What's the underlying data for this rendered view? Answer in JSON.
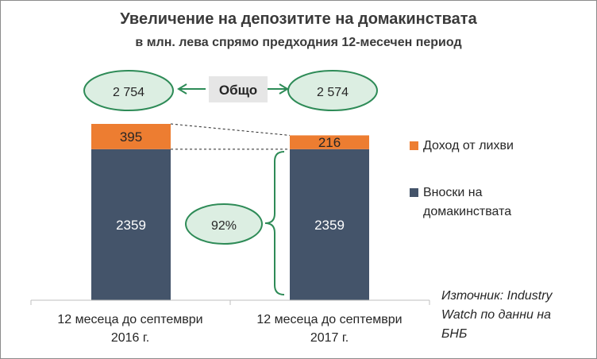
{
  "header": {
    "title": "Увеличение на депозитите на домакинствата",
    "subtitle": "в млн. лева спрямо предходния 12-месечен период"
  },
  "colors": {
    "deposits": "#44546a",
    "interest": "#ed7d31",
    "accent_green": "#2e8b57",
    "total_fill": "#dceee2",
    "box_fill": "#e6e6e6"
  },
  "annotations": {
    "total_label": "Общо",
    "share_label": "92%",
    "totals": [
      "2 754",
      "2 574"
    ]
  },
  "legend": {
    "interest": "Доход от лихви",
    "deposits_line1": "Вноски на",
    "deposits_line2": "домакинствата"
  },
  "source": {
    "line1": "Източник: Industry",
    "line2": "Watch по данни на",
    "line3": "БНБ"
  },
  "chart_data": {
    "type": "bar",
    "stacked": true,
    "title": "Увеличение на депозитите на домакинствата",
    "subtitle": "в млн. лева спрямо предходния 12-месечен период",
    "categories": [
      [
        "12 месеца до септември",
        "2016 г."
      ],
      [
        "12 месеца до септември",
        "2017 г."
      ]
    ],
    "series": [
      {
        "name": "Вноски на домакинствата",
        "values": [
          2359,
          2359
        ],
        "color": "#44546a"
      },
      {
        "name": "Доход от лихви",
        "values": [
          395,
          216
        ],
        "color": "#ed7d31"
      }
    ],
    "totals": [
      2754,
      2574
    ],
    "ylim": [
      0,
      2754
    ],
    "legend_position": "right",
    "grid": false
  }
}
